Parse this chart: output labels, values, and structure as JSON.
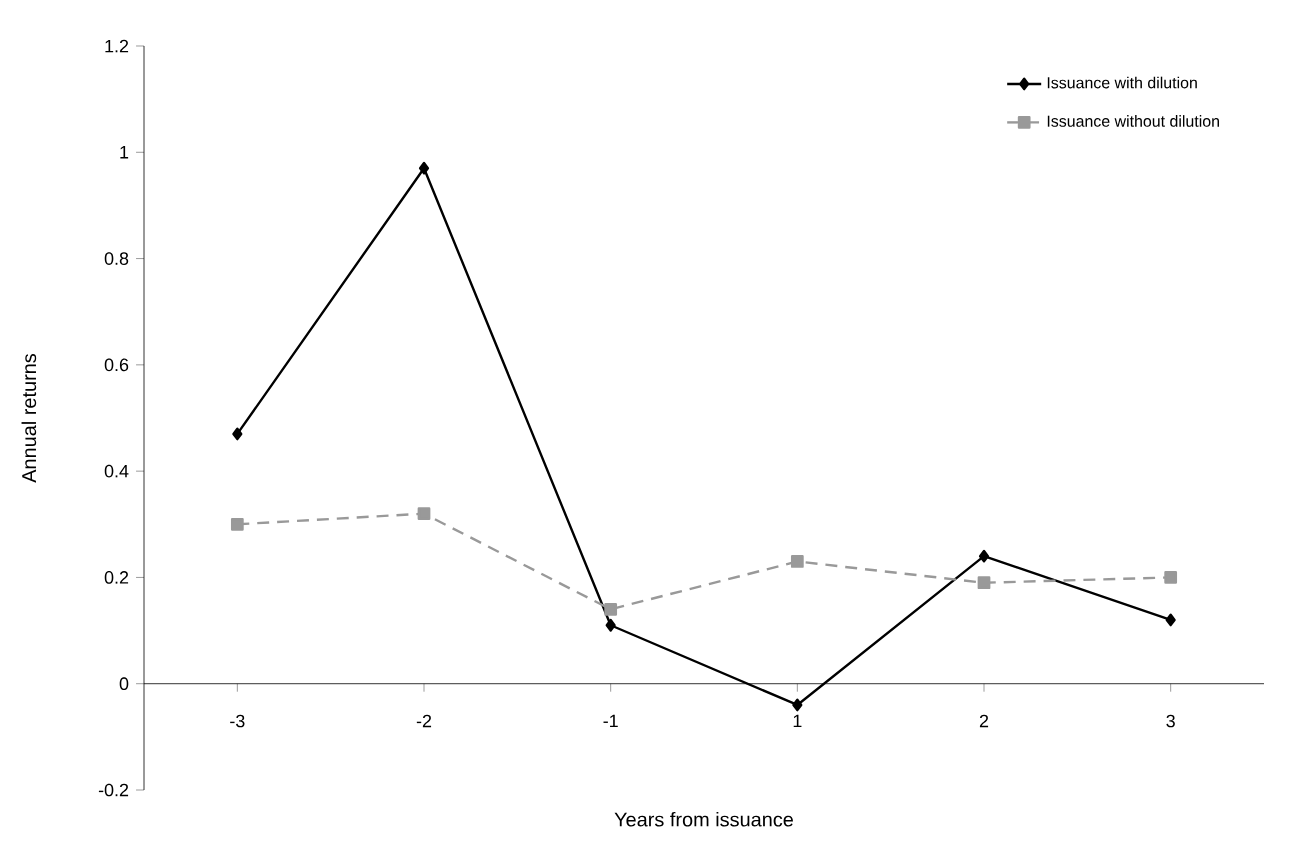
{
  "chart_data": {
    "type": "line",
    "xlabel": "Years from issuance",
    "ylabel": "Annual returns",
    "categories": [
      "-3",
      "-2",
      "-1",
      "1",
      "2",
      "3"
    ],
    "series": [
      {
        "name": "Issuance with dilution",
        "color": "#000000",
        "values": [
          0.47,
          0.97,
          0.11,
          -0.04,
          0.24,
          0.12
        ],
        "marker": "diamond",
        "line_style": "solid"
      },
      {
        "name": "Issuance without dilution",
        "color": "#999999",
        "values": [
          0.3,
          0.32,
          0.14,
          0.23,
          0.19,
          0.2
        ],
        "marker": "square",
        "line_style": "dashed"
      }
    ],
    "ylim": [
      -0.2,
      1.2
    ],
    "yticks": [
      -0.2,
      0,
      0.2,
      0.4,
      0.6,
      0.8,
      1,
      1.2
    ],
    "legend": "top right",
    "grid": false
  }
}
